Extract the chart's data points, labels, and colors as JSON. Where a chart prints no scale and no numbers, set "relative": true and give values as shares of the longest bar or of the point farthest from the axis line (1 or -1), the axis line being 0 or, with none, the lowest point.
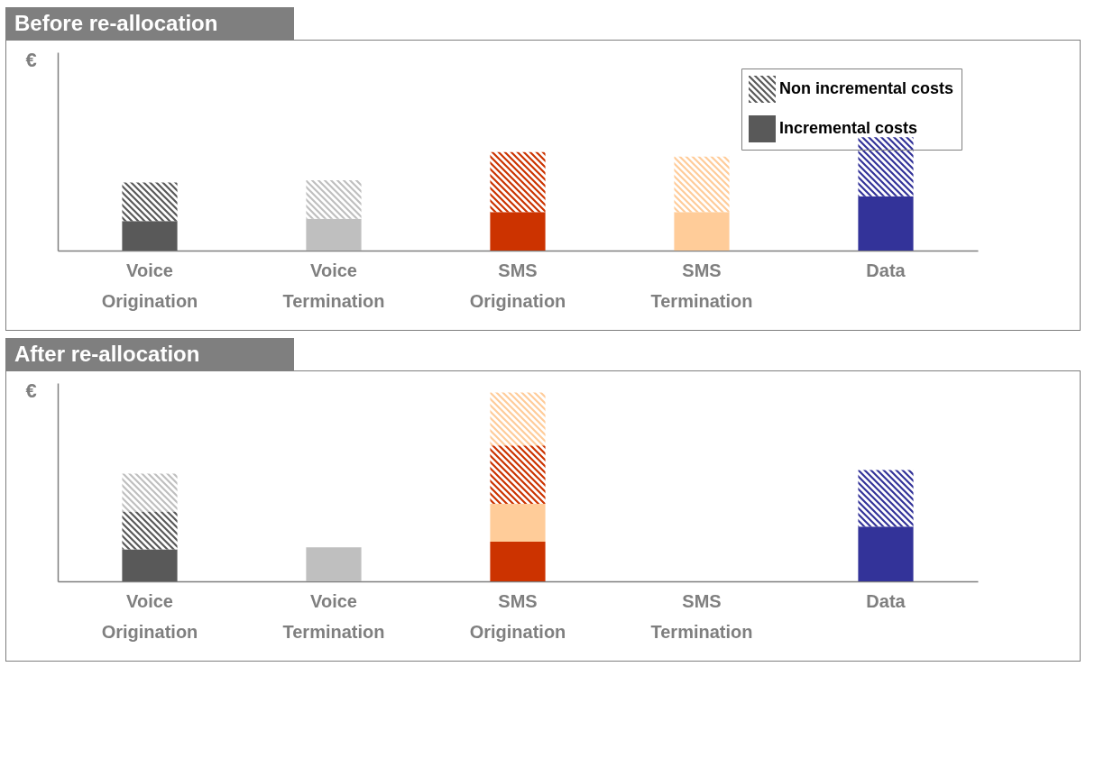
{
  "chart_data": [
    {
      "type": "bar",
      "title": "Before re-allocation",
      "ylabel": "€",
      "relative": true,
      "stacked": true,
      "legend": "top right",
      "categories": [
        "Voice Origination",
        "Voice Termination",
        "SMS Origination",
        "SMS Termination",
        "Data"
      ],
      "series": [
        {
          "name": "Incremental costs",
          "colors": [
            "#595959",
            "#bfbfbf",
            "#cc3300",
            "#ffcc99",
            "#333399"
          ],
          "values": [
            0.26,
            0.28,
            0.34,
            0.34,
            0.48
          ]
        },
        {
          "name": "Non incremental costs",
          "colors": [
            "#595959",
            "#bfbfbf",
            "#cc3300",
            "#ffcc99",
            "#333399"
          ],
          "values": [
            0.34,
            0.34,
            0.53,
            0.49,
            0.52
          ]
        }
      ]
    },
    {
      "type": "bar",
      "title": "After re-allocation",
      "ylabel": "€",
      "relative": true,
      "stacked": true,
      "categories": [
        "Voice Origination",
        "Voice Termination",
        "SMS Origination",
        "SMS Termination",
        "Data"
      ],
      "series": [
        {
          "colors": [
            "#595959",
            "#bfbfbf",
            "#cc3300",
            null,
            "#333399"
          ],
          "values": [
            0.17,
            0.18,
            0.21,
            null,
            0.29
          ]
        },
        {
          "colors": [
            null,
            null,
            "#ffcc99",
            null,
            null
          ],
          "values": [
            null,
            null,
            0.2,
            null,
            null
          ]
        },
        {
          "colors": [
            "#595959",
            null,
            "#cc3300",
            null,
            "#333399"
          ],
          "values": [
            0.2,
            null,
            0.31,
            null,
            0.3
          ]
        },
        {
          "colors": [
            "#bfbfbf",
            null,
            "#ffcc99",
            null,
            null
          ],
          "values": [
            0.2,
            null,
            0.28,
            null,
            null
          ]
        }
      ]
    }
  ]
}
